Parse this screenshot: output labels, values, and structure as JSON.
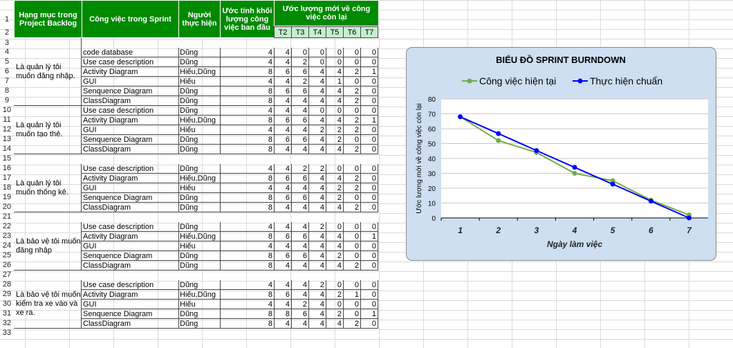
{
  "headers": {
    "backlog": "Hạng mục trong Project Backlog",
    "task": "Công việc trong Sprint",
    "person": "Người thực hiện",
    "initial": "Ước tính khối lượng công việc ban đầu",
    "remaining": "Ước lượng mới về công việc còn lại",
    "days": [
      "T2",
      "T3",
      "T4",
      "T5",
      "T6",
      "T7"
    ]
  },
  "groups": [
    {
      "label": "Là quản lý tôi muốn đăng nhập.",
      "rows": [
        4,
        9
      ]
    },
    {
      "label": "Là quản lý tôi muốn tạo thẻ.",
      "rows": [
        10,
        14
      ]
    },
    {
      "label": "Là quản lý tôi muốn thống kê.",
      "rows": [
        16,
        20
      ]
    },
    {
      "label": "Là bảo vệ tôi muốn đăng nhập",
      "rows": [
        22,
        26
      ]
    },
    {
      "label": "Là bảo vệ tôi muốn kiểm tra xe vào và xe ra.",
      "rows": [
        28,
        32
      ]
    }
  ],
  "rows": [
    {
      "row": 4,
      "task": "code database",
      "person": "Dũng",
      "est": 4,
      "vals": [
        4,
        0,
        0,
        0,
        0,
        0
      ]
    },
    {
      "row": 5,
      "task": "Use case description",
      "person": "Dũng",
      "est": 4,
      "vals": [
        4,
        2,
        0,
        0,
        0,
        0
      ]
    },
    {
      "row": 6,
      "task": "Activity Diagram",
      "person": "Hiếu,Dũng",
      "est": 8,
      "vals": [
        6,
        6,
        4,
        4,
        2,
        1
      ]
    },
    {
      "row": 7,
      "task": "GUI",
      "person": "Hiếu",
      "est": 4,
      "vals": [
        4,
        2,
        4,
        1,
        0,
        0
      ]
    },
    {
      "row": 8,
      "task": "Senquence Diagram",
      "person": "Dũng",
      "est": 8,
      "vals": [
        6,
        6,
        4,
        4,
        2,
        0
      ]
    },
    {
      "row": 9,
      "task": "ClassDiagram",
      "person": "Dũng",
      "est": 8,
      "vals": [
        4,
        4,
        4,
        4,
        2,
        0
      ]
    },
    {
      "row": 10,
      "task": "Use case description",
      "person": "Dũng",
      "est": 4,
      "vals": [
        4,
        4,
        0,
        0,
        0,
        0
      ]
    },
    {
      "row": 11,
      "task": "Activity Diagram",
      "person": "Hiếu,Dũng",
      "est": 8,
      "vals": [
        6,
        6,
        4,
        4,
        2,
        1
      ]
    },
    {
      "row": 12,
      "task": "GUI",
      "person": "Hiếu",
      "est": 4,
      "vals": [
        4,
        4,
        2,
        2,
        2,
        0
      ]
    },
    {
      "row": 13,
      "task": "Senquence Diagram",
      "person": "Dũng",
      "est": 8,
      "vals": [
        6,
        6,
        4,
        2,
        0,
        0
      ]
    },
    {
      "row": 14,
      "task": "ClassDiagram",
      "person": "Dũng",
      "est": 8,
      "vals": [
        4,
        4,
        4,
        4,
        2,
        0
      ]
    },
    {
      "row": 16,
      "task": "Use case description",
      "person": "Dũng",
      "est": 4,
      "vals": [
        4,
        2,
        2,
        0,
        0,
        0
      ]
    },
    {
      "row": 17,
      "task": "Activity Diagram",
      "person": "Hiếu,Dũng",
      "est": 8,
      "vals": [
        6,
        6,
        4,
        4,
        2,
        0
      ]
    },
    {
      "row": 18,
      "task": "GUI",
      "person": "Hiếu",
      "est": 4,
      "vals": [
        4,
        4,
        4,
        2,
        2,
        0
      ]
    },
    {
      "row": 19,
      "task": "Senquence Diagram",
      "person": "Dũng",
      "est": 8,
      "vals": [
        6,
        6,
        4,
        2,
        0,
        0
      ]
    },
    {
      "row": 20,
      "task": "ClassDiagram",
      "person": "Dũng",
      "est": 8,
      "vals": [
        4,
        4,
        4,
        4,
        2,
        0
      ]
    },
    {
      "row": 22,
      "task": "Use case description",
      "person": "Dũng",
      "est": 4,
      "vals": [
        4,
        4,
        2,
        0,
        0,
        0
      ]
    },
    {
      "row": 23,
      "task": "Activity Diagram",
      "person": "Hiếu,Dũng",
      "est": 8,
      "vals": [
        6,
        6,
        4,
        4,
        0,
        1
      ]
    },
    {
      "row": 24,
      "task": "GUI",
      "person": "Hiếu",
      "est": 4,
      "vals": [
        4,
        4,
        4,
        4,
        0,
        0
      ]
    },
    {
      "row": 25,
      "task": "Senquence Diagram",
      "person": "Dũng",
      "est": 8,
      "vals": [
        6,
        6,
        4,
        2,
        0,
        0
      ]
    },
    {
      "row": 26,
      "task": "ClassDiagram",
      "person": "Dũng",
      "est": 8,
      "vals": [
        4,
        4,
        4,
        4,
        2,
        0
      ]
    },
    {
      "row": 28,
      "task": "Use case description",
      "person": "Dũng",
      "est": 4,
      "vals": [
        4,
        4,
        2,
        0,
        0,
        0
      ]
    },
    {
      "row": 29,
      "task": "Activity Diagram",
      "person": "Hiếu,Dũng",
      "est": 8,
      "vals": [
        6,
        4,
        4,
        2,
        1,
        0
      ]
    },
    {
      "row": 30,
      "task": "GUI",
      "person": "Hiếu",
      "est": 4,
      "vals": [
        4,
        2,
        4,
        0,
        0,
        0
      ]
    },
    {
      "row": 31,
      "task": "Senquence Diagram",
      "person": "Dũng",
      "est": 8,
      "vals": [
        8,
        6,
        4,
        2,
        0,
        1
      ]
    },
    {
      "row": 32,
      "task": "ClassDiagram",
      "person": "Dũng",
      "est": 8,
      "vals": [
        4,
        4,
        4,
        4,
        2,
        0
      ]
    }
  ],
  "colors": {
    "header_green": "#008a00",
    "day_header": "#c6efce",
    "chart_bg": "#cddff0",
    "series_actual": "#70ad47",
    "series_ideal": "#0000ff"
  },
  "chart_data": {
    "type": "line",
    "title": "BIỂU ĐỒ SPRINT BURNDOWN",
    "xlabel": "Ngày làm việc",
    "ylabel": "Ước lượng mới về công việc còn lại",
    "categories": [
      "1",
      "2",
      "3",
      "4",
      "5",
      "6",
      "7"
    ],
    "ylim": [
      0,
      80
    ],
    "yticks": [
      0,
      10,
      20,
      30,
      40,
      50,
      60,
      70,
      80
    ],
    "grid": true,
    "legend": "top",
    "series": [
      {
        "name": "Công việc hiện tại",
        "color": "#70ad47",
        "values": [
          68,
          52,
          44,
          30,
          25,
          12,
          2
        ]
      },
      {
        "name": "Thực hiện chuẩn",
        "color": "#0000ff",
        "values": [
          68,
          56.7,
          45.3,
          34,
          22.7,
          11.3,
          0
        ]
      }
    ]
  }
}
